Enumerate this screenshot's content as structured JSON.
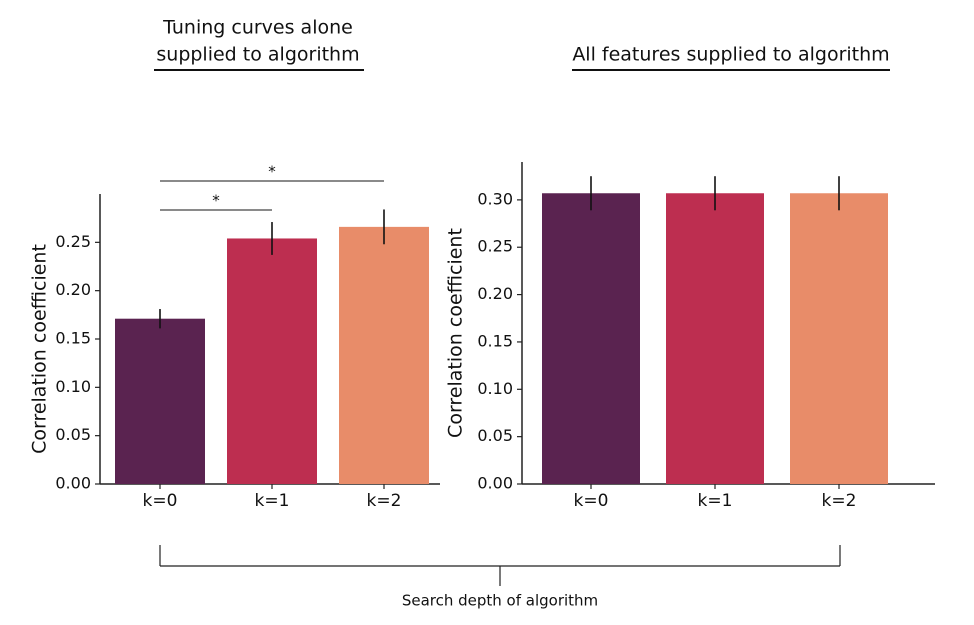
{
  "chart_data": [
    {
      "type": "bar",
      "title": [
        "Tuning curves alone",
        "supplied to algorithm"
      ],
      "ylabel": "Correlation coefficient",
      "categories": [
        "k=0",
        "k=1",
        "k=2"
      ],
      "values": [
        0.171,
        0.254,
        0.266
      ],
      "errors": [
        0.01,
        0.017,
        0.018
      ],
      "colors": [
        "#5a2350",
        "#bd2e50",
        "#e88c69"
      ],
      "ylim": [
        0,
        0.3
      ],
      "yticks": [
        {
          "value": 0,
          "label": "0.00"
        },
        {
          "value": 0.05,
          "label": "0.05"
        },
        {
          "value": 0.1,
          "label": "0.10"
        },
        {
          "value": 0.15,
          "label": "0.15"
        },
        {
          "value": 0.2,
          "label": "0.20"
        },
        {
          "value": 0.25,
          "label": "0.25"
        }
      ],
      "annotations": [
        {
          "text": "*",
          "between": [
            "k=0",
            "k=1"
          ]
        },
        {
          "text": "*",
          "between": [
            "k=0",
            "k=2"
          ]
        }
      ]
    },
    {
      "type": "bar",
      "title": [
        "All features supplied to algorithm"
      ],
      "ylabel": "Correlation coefficient",
      "categories": [
        "k=0",
        "k=1",
        "k=2"
      ],
      "values": [
        0.307,
        0.307,
        0.307
      ],
      "errors": [
        0.018,
        0.018,
        0.018
      ],
      "colors": [
        "#5a2350",
        "#bd2e50",
        "#e88c69"
      ],
      "ylim": [
        0,
        0.34
      ],
      "yticks": [
        {
          "value": 0,
          "label": "0.00"
        },
        {
          "value": 0.05,
          "label": "0.05"
        },
        {
          "value": 0.1,
          "label": "0.10"
        },
        {
          "value": 0.15,
          "label": "0.15"
        },
        {
          "value": 0.2,
          "label": "0.20"
        },
        {
          "value": 0.25,
          "label": "0.25"
        },
        {
          "value": 0.3,
          "label": "0.30"
        }
      ]
    }
  ],
  "xlabel": "Search depth of algorithm"
}
